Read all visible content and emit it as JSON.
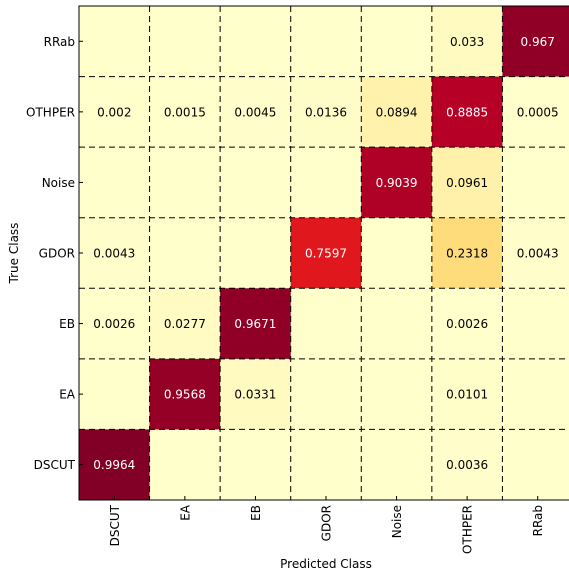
{
  "chart_data": {
    "type": "heatmap",
    "title": "",
    "xlabel": "Predicted Class",
    "ylabel": "True Class",
    "x_categories": [
      "DSCUT",
      "EA",
      "EB",
      "GDOR",
      "Noise",
      "OTHPER",
      "RRab"
    ],
    "y_categories_top_to_bottom": [
      "RRab",
      "OTHPER",
      "Noise",
      "GDOR",
      "EB",
      "EA",
      "DSCUT"
    ],
    "cells": [
      [
        null,
        null,
        null,
        null,
        null,
        "0.033",
        "0.967"
      ],
      [
        "0.002",
        "0.0015",
        "0.0045",
        "0.0136",
        "0.0894",
        "0.8885",
        "0.0005"
      ],
      [
        null,
        null,
        null,
        null,
        "0.9039",
        "0.0961",
        null
      ],
      [
        "0.0043",
        null,
        null,
        "0.7597",
        null,
        "0.2318",
        "0.0043"
      ],
      [
        "0.0026",
        "0.0277",
        "0.9671",
        null,
        null,
        "0.0026",
        null
      ],
      [
        null,
        "0.9568",
        "0.0331",
        null,
        null,
        "0.0101",
        null
      ],
      [
        "0.9964",
        null,
        null,
        null,
        null,
        "0.0036",
        null
      ]
    ],
    "colormap": "YlOrRd",
    "value_range": [
      0,
      1
    ],
    "grid": "dashed"
  }
}
